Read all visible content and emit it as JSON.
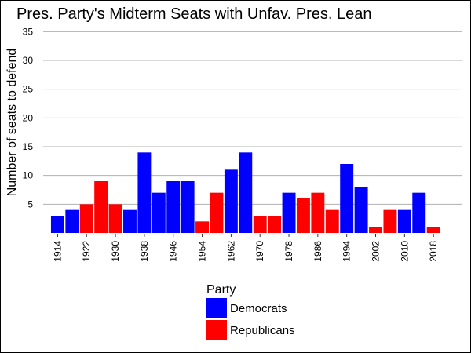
{
  "chart_data": {
    "type": "bar",
    "title": "Pres. Party's Midterm Seats with Unfav. Pres. Lean",
    "xlabel": "",
    "ylabel": "Number of seats to defend",
    "ylim": [
      0,
      36
    ],
    "yticks": [
      5,
      10,
      15,
      20,
      25,
      30,
      35
    ],
    "grid": true,
    "x_tick_labels": [
      "1914",
      "1922",
      "1930",
      "1938",
      "1946",
      "1954",
      "1962",
      "1970",
      "1978",
      "1986",
      "1994",
      "2002",
      "2010",
      "2018"
    ],
    "legend_title": "Party",
    "legend_position": "bottom-center",
    "legend": [
      {
        "name": "Democrats",
        "color": "#0000ff"
      },
      {
        "name": "Republicans",
        "color": "#ff0000"
      }
    ],
    "bars": [
      {
        "year": 1914,
        "party": "Democrats",
        "value": 3
      },
      {
        "year": 1918,
        "party": "Democrats",
        "value": 4
      },
      {
        "year": 1922,
        "party": "Republicans",
        "value": 5
      },
      {
        "year": 1926,
        "party": "Republicans",
        "value": 9
      },
      {
        "year": 1930,
        "party": "Republicans",
        "value": 5
      },
      {
        "year": 1934,
        "party": "Democrats",
        "value": 4
      },
      {
        "year": 1938,
        "party": "Democrats",
        "value": 14
      },
      {
        "year": 1942,
        "party": "Democrats",
        "value": 7
      },
      {
        "year": 1946,
        "party": "Democrats",
        "value": 9
      },
      {
        "year": 1950,
        "party": "Democrats",
        "value": 9
      },
      {
        "year": 1954,
        "party": "Republicans",
        "value": 2
      },
      {
        "year": 1958,
        "party": "Republicans",
        "value": 7
      },
      {
        "year": 1962,
        "party": "Democrats",
        "value": 11
      },
      {
        "year": 1966,
        "party": "Democrats",
        "value": 14
      },
      {
        "year": 1970,
        "party": "Republicans",
        "value": 3
      },
      {
        "year": 1974,
        "party": "Republicans",
        "value": 3
      },
      {
        "year": 1978,
        "party": "Democrats",
        "value": 7
      },
      {
        "year": 1982,
        "party": "Republicans",
        "value": 6
      },
      {
        "year": 1986,
        "party": "Republicans",
        "value": 7
      },
      {
        "year": 1990,
        "party": "Republicans",
        "value": 4
      },
      {
        "year": 1994,
        "party": "Democrats",
        "value": 12
      },
      {
        "year": 1998,
        "party": "Democrats",
        "value": 8
      },
      {
        "year": 2002,
        "party": "Republicans",
        "value": 1
      },
      {
        "year": 2006,
        "party": "Republicans",
        "value": 4
      },
      {
        "year": 2010,
        "party": "Democrats",
        "value": 4
      },
      {
        "year": 2014,
        "party": "Democrats",
        "value": 7
      },
      {
        "year": 2018,
        "party": "Republicans",
        "value": 1
      }
    ]
  }
}
